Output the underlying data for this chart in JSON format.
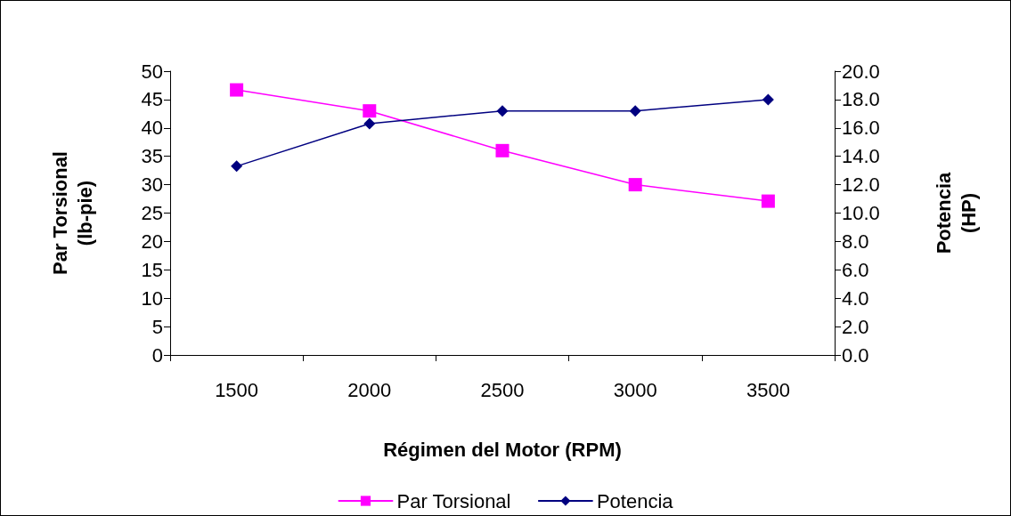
{
  "chart_data": {
    "type": "line",
    "xlabel": "Régimen del Motor (RPM)",
    "ylabel": "Par Torsional\n(lb-pie)",
    "y2label": "Potencia\n(HP)",
    "categories": [
      "1500",
      "2000",
      "2500",
      "3000",
      "3500"
    ],
    "series": [
      {
        "name": "Par Torsional",
        "color": "#ff00ff",
        "marker": "square",
        "values": [
          46.7,
          43,
          36,
          30,
          27.1
        ]
      },
      {
        "name": "Potencia",
        "color": "#000080",
        "marker": "diamond",
        "axis": "y2",
        "values": [
          13.3,
          16.3,
          17.2,
          17.2,
          18.0
        ]
      }
    ],
    "ylim": [
      0,
      50
    ],
    "yticks": [
      0,
      5,
      10,
      15,
      20,
      25,
      30,
      35,
      40,
      45,
      50
    ],
    "y2lim": [
      0,
      20
    ],
    "y2ticks": [
      {
        "value": 0,
        "label": "0.0"
      },
      {
        "value": 2,
        "label": "2.0"
      },
      {
        "value": 4,
        "label": "4.0"
      },
      {
        "value": 6,
        "label": "6.0"
      },
      {
        "value": 8,
        "label": "8.0"
      },
      {
        "value": 10,
        "label": "10.0"
      },
      {
        "value": 12,
        "label": "12.0"
      },
      {
        "value": 14,
        "label": "14.0"
      },
      {
        "value": 16,
        "label": "16.0"
      },
      {
        "value": 18,
        "label": "18.0"
      },
      {
        "value": 20,
        "label": "20.0"
      }
    ],
    "grid": false,
    "legend": "bottom",
    "line_style": "solid"
  }
}
